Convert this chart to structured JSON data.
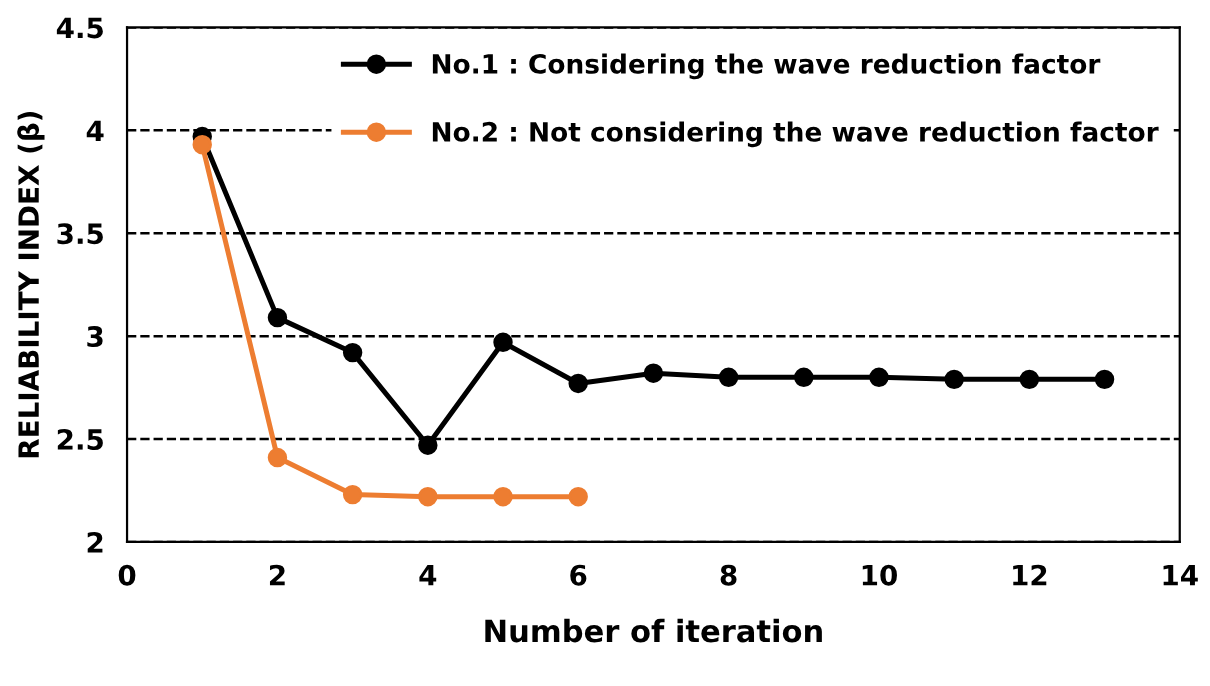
{
  "chart_data": {
    "type": "line",
    "xlabel": "Number of iteration",
    "ylabel": "RELIABILITY INDEX (β)",
    "xlim": [
      0,
      14
    ],
    "xticks": [
      0,
      2,
      4,
      6,
      8,
      10,
      12,
      14
    ],
    "ylim": [
      2,
      4.5
    ],
    "yticks": [
      2,
      2.5,
      3,
      3.5,
      4,
      4.5
    ],
    "grid": "y",
    "legend": "top right",
    "marker": "circle",
    "line_style": "solid",
    "series": [
      {
        "name": "No.1 : Considering the wave reduction factor",
        "color": "#000000",
        "x": [
          1,
          2,
          3,
          4,
          5,
          6,
          7,
          8,
          9,
          10,
          11,
          12,
          13
        ],
        "values": [
          3.97,
          3.09,
          2.92,
          2.47,
          2.97,
          2.77,
          2.82,
          2.8,
          2.8,
          2.8,
          2.79,
          2.79,
          2.79
        ]
      },
      {
        "name": "No.2 : Not considering the wave reduction factor",
        "color": "#ed7d31",
        "x": [
          1,
          2,
          3,
          4,
          5,
          6
        ],
        "values": [
          3.93,
          2.41,
          2.23,
          2.22,
          2.22,
          2.22
        ]
      }
    ]
  }
}
